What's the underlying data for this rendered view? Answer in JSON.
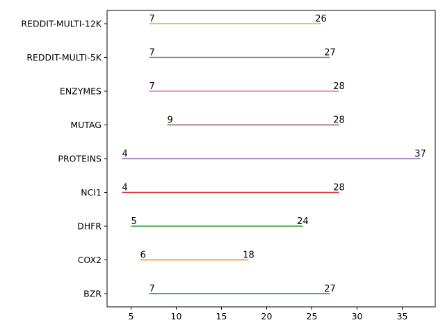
{
  "chart_data": {
    "type": "range-line",
    "title": "",
    "xlabel": "",
    "ylabel": "",
    "xlim": [
      2.35,
      38.65
    ],
    "x_ticks": [
      5,
      10,
      15,
      20,
      25,
      30,
      35
    ],
    "grid": false,
    "legend": "none",
    "categories": [
      "BZR",
      "COX2",
      "DHFR",
      "NCI1",
      "PROTEINS",
      "MUTAG",
      "ENZYMES",
      "REDDIT-MULTI-5K",
      "REDDIT-MULTI-12K"
    ],
    "series": [
      {
        "category": "BZR",
        "start": 7,
        "end": 27,
        "start_label": "7",
        "end_label": "27",
        "color": "#1f77b4"
      },
      {
        "category": "COX2",
        "start": 6,
        "end": 18,
        "start_label": "6",
        "end_label": "18",
        "color": "#ff7f0e"
      },
      {
        "category": "DHFR",
        "start": 5,
        "end": 24,
        "start_label": "5",
        "end_label": "24",
        "color": "#2ca02c"
      },
      {
        "category": "NCI1",
        "start": 4,
        "end": 28,
        "start_label": "4",
        "end_label": "28",
        "color": "#d62728"
      },
      {
        "category": "PROTEINS",
        "start": 4,
        "end": 37,
        "start_label": "4",
        "end_label": "37",
        "color": "#9467bd"
      },
      {
        "category": "MUTAG",
        "start": 9,
        "end": 28,
        "start_label": "9",
        "end_label": "28",
        "color": "#8c564b"
      },
      {
        "category": "ENZYMES",
        "start": 7,
        "end": 28,
        "start_label": "7",
        "end_label": "28",
        "color": "#e377c2"
      },
      {
        "category": "REDDIT-MULTI-5K",
        "start": 7,
        "end": 27,
        "start_label": "7",
        "end_label": "27",
        "color": "#7f7f7f"
      },
      {
        "category": "REDDIT-MULTI-12K",
        "start": 7,
        "end": 26,
        "start_label": "7",
        "end_label": "26",
        "color": "#bcbd22"
      }
    ]
  }
}
